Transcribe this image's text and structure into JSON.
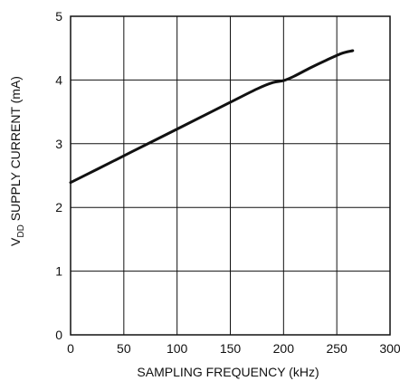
{
  "chart_data": {
    "type": "line",
    "title": "",
    "xlabel": "SAMPLING FREQUENCY (kHz)",
    "ylabel": {
      "prefix": "V",
      "subscript": "DD",
      "suffix": " SUPPLY CURRENT (mA)"
    },
    "xlim": [
      0,
      300
    ],
    "ylim": [
      0,
      5
    ],
    "xticks": [
      0,
      50,
      100,
      150,
      200,
      250,
      300
    ],
    "yticks": [
      0,
      1,
      2,
      3,
      4,
      5
    ],
    "grid": true,
    "legend": "none",
    "line_color": "#111111",
    "series": [
      {
        "x": [
          0,
          25,
          50,
          75,
          100,
          125,
          150,
          175,
          190,
          200,
          210,
          225,
          240,
          255,
          265
        ],
        "y": [
          2.39,
          2.6,
          2.81,
          3.02,
          3.23,
          3.44,
          3.65,
          3.86,
          3.96,
          3.99,
          4.06,
          4.19,
          4.31,
          4.42,
          4.46
        ]
      }
    ]
  }
}
